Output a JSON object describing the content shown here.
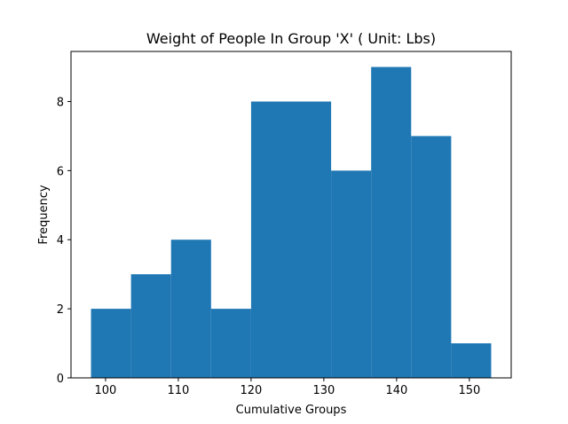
{
  "chart_data": {
    "type": "bar",
    "title": "Weight of People In Group 'X' ( Unit: Lbs)",
    "xlabel": "Cumulative Groups",
    "ylabel": "Frequency",
    "bin_edges": [
      98,
      103.5,
      109,
      114.5,
      120,
      125.5,
      131,
      136.5,
      142,
      147.5,
      153
    ],
    "values": [
      2,
      3,
      4,
      2,
      8,
      8,
      6,
      9,
      7,
      1
    ],
    "xlim": [
      95.25,
      155.75
    ],
    "ylim": [
      0,
      9.45
    ],
    "xticks": [
      100,
      110,
      120,
      130,
      140,
      150
    ],
    "yticks": [
      0,
      2,
      4,
      6,
      8
    ],
    "bar_color": "#1f77b4",
    "grid": false
  }
}
